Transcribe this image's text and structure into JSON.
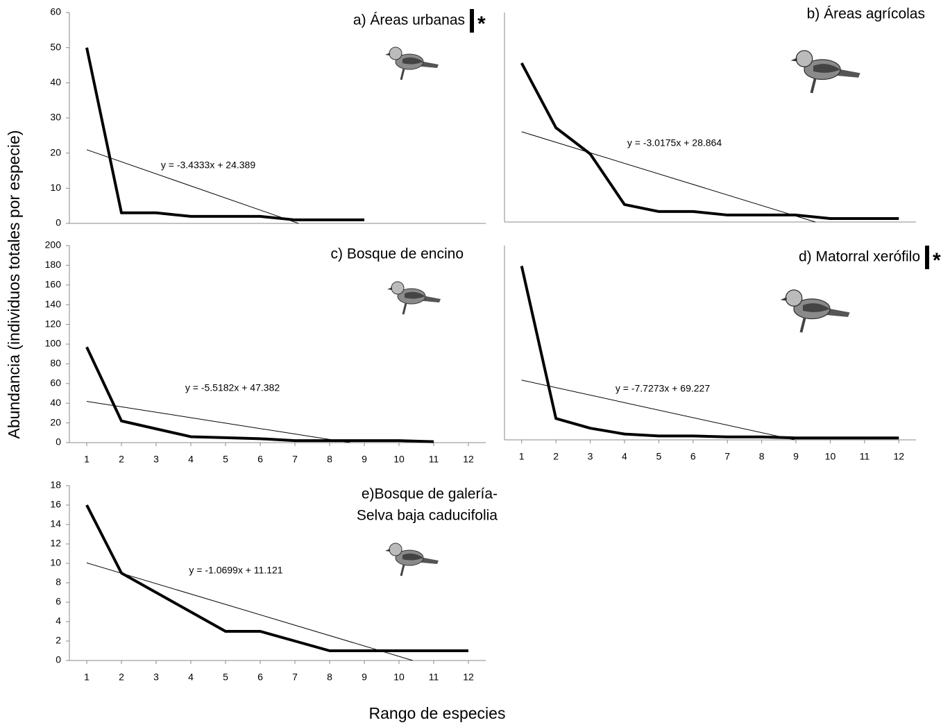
{
  "ylabel": "Abundancia (individuos totales por especie)",
  "xlabel": "Rango de especies",
  "chart_data": [
    {
      "type": "line",
      "title": [
        "a) Áreas urbanas"
      ],
      "marker": "*",
      "x": [
        1,
        2,
        3,
        4,
        5,
        6,
        7,
        8,
        9
      ],
      "series": [
        {
          "color": "#000000",
          "values": [
            50,
            3,
            3,
            2,
            2,
            2,
            1,
            1,
            1
          ]
        }
      ],
      "xlim": [
        0.5,
        12.5
      ],
      "ylim": [
        0,
        60
      ],
      "yticks": [
        0,
        10,
        20,
        30,
        40,
        50,
        60
      ],
      "trend": {
        "slope": -3.4333,
        "intercept": 24.389
      },
      "annotation": "y = -3.4333x + 24.389"
    },
    {
      "type": "line",
      "title": [
        "b) Áreas agrícolas"
      ],
      "x": [
        1,
        2,
        3,
        4,
        5,
        6,
        7,
        8,
        9,
        10,
        11,
        12
      ],
      "series": [
        {
          "color": "#000000",
          "values": [
            45.5,
            27,
            19.5,
            5,
            3,
            3,
            2,
            2,
            2,
            1,
            1,
            1
          ]
        }
      ],
      "xlim": [
        0.5,
        12.5
      ],
      "ylim": [
        0,
        60
      ],
      "trend": {
        "slope": -3.0175,
        "intercept": 28.864
      },
      "annotation": "y = -3.0175x + 28.864"
    },
    {
      "type": "line",
      "title": [
        "c) Bosque de encino"
      ],
      "x": [
        1,
        2,
        3,
        4,
        5,
        6,
        7,
        8,
        9,
        10,
        11
      ],
      "series": [
        {
          "color": "#000000",
          "values": [
            97,
            22,
            14,
            6,
            5,
            4,
            2,
            2,
            2,
            2,
            1
          ]
        }
      ],
      "xlim": [
        0.5,
        12.5
      ],
      "ylim": [
        0,
        200
      ],
      "yticks": [
        0,
        20,
        40,
        60,
        80,
        100,
        120,
        140,
        160,
        180,
        200
      ],
      "xticks": [
        1,
        2,
        3,
        4,
        5,
        6,
        7,
        8,
        9,
        10,
        11,
        12
      ],
      "trend": {
        "slope": -5.5182,
        "intercept": 47.382
      },
      "annotation": "y = -5.5182x + 47.382"
    },
    {
      "type": "line",
      "title": [
        "d) Matorral xerófilo"
      ],
      "marker": "*",
      "x": [
        1,
        2,
        3,
        4,
        5,
        6,
        7,
        8,
        9,
        10,
        11,
        12
      ],
      "series": [
        {
          "color": "#000000",
          "values": [
            179,
            22,
            12,
            6,
            4,
            4,
            3,
            3,
            2,
            2,
            2,
            2
          ]
        }
      ],
      "xlim": [
        0.5,
        12.5
      ],
      "ylim": [
        0,
        200
      ],
      "xticks": [
        1,
        2,
        3,
        4,
        5,
        6,
        7,
        8,
        9,
        10,
        11,
        12
      ],
      "trend": {
        "slope": -7.7273,
        "intercept": 69.227
      },
      "annotation": "y = -7.7273x + 69.227"
    },
    {
      "type": "line",
      "title": [
        "e)Bosque de galería-",
        "Selva baja caducifolia"
      ],
      "x": [
        1,
        2,
        3,
        4,
        5,
        6,
        7,
        8,
        9,
        10,
        11,
        12
      ],
      "series": [
        {
          "color": "#000000",
          "values": [
            16,
            9,
            7,
            5,
            3,
            3,
            2,
            1,
            1,
            1,
            1,
            1
          ]
        }
      ],
      "xlim": [
        0.5,
        12.5
      ],
      "ylim": [
        0,
        18
      ],
      "yticks": [
        0,
        2,
        4,
        6,
        8,
        10,
        12,
        14,
        16,
        18
      ],
      "xticks": [
        1,
        2,
        3,
        4,
        5,
        6,
        7,
        8,
        9,
        10,
        11,
        12
      ],
      "trend": {
        "slope": -1.0699,
        "intercept": 11.121
      },
      "annotation": "y = -1.0699x + 11.121"
    }
  ]
}
